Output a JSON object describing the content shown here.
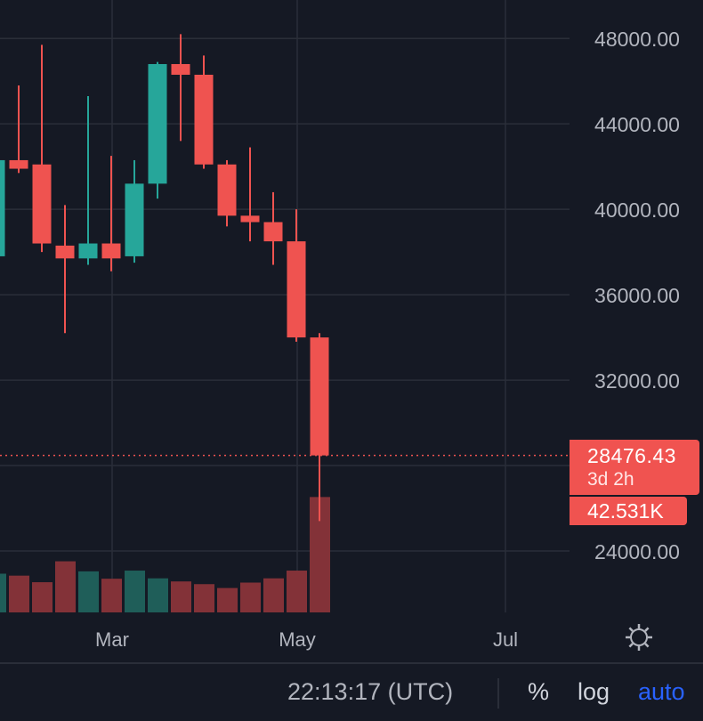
{
  "chart_data": {
    "type": "candlestick",
    "x_ticks": [
      "Mar",
      "May",
      "Jul"
    ],
    "y_ticks": [
      "48000.00",
      "44000.00",
      "40000.00",
      "36000.00",
      "32000.00",
      "24000.00"
    ],
    "y_tick_values": [
      48000,
      44000,
      40000,
      36000,
      32000,
      24000
    ],
    "ylim": [
      20000,
      49800
    ],
    "grid": true,
    "candles": [
      {
        "o": 37800,
        "h": 42500,
        "l": 37700,
        "c": 42300,
        "v": 1.0
      },
      {
        "o": 42300,
        "h": 45800,
        "l": 41700,
        "c": 41900,
        "v": 0.95
      },
      {
        "o": 42100,
        "h": 47700,
        "l": 38000,
        "c": 38400,
        "v": 0.78
      },
      {
        "o": 38300,
        "h": 40200,
        "l": 34200,
        "c": 37700,
        "v": 1.32
      },
      {
        "o": 37700,
        "h": 45300,
        "l": 37400,
        "c": 38400,
        "v": 1.06
      },
      {
        "o": 38400,
        "h": 42500,
        "l": 37100,
        "c": 37700,
        "v": 0.87
      },
      {
        "o": 37800,
        "h": 42300,
        "l": 37500,
        "c": 41200,
        "v": 1.08
      },
      {
        "o": 41200,
        "h": 46900,
        "l": 40500,
        "c": 46800,
        "v": 0.88
      },
      {
        "o": 46800,
        "h": 48200,
        "l": 43200,
        "c": 46300,
        "v": 0.8
      },
      {
        "o": 46300,
        "h": 47200,
        "l": 41900,
        "c": 42100,
        "v": 0.73
      },
      {
        "o": 42100,
        "h": 42300,
        "l": 39200,
        "c": 39700,
        "v": 0.63
      },
      {
        "o": 39700,
        "h": 42900,
        "l": 38500,
        "c": 39400,
        "v": 0.77
      },
      {
        "o": 39400,
        "h": 40800,
        "l": 37400,
        "c": 38500,
        "v": 0.88
      },
      {
        "o": 38500,
        "h": 40000,
        "l": 33800,
        "c": 34000,
        "v": 1.08
      },
      {
        "o": 34000,
        "h": 34200,
        "l": 25400,
        "c": 28476.43,
        "v": 2.98
      }
    ],
    "current_price": "28476.43",
    "countdown": "3d 2h",
    "volume_label": "42.531K",
    "colors": {
      "up": "#26a69a",
      "down": "#ef5350",
      "vol_up": "#1f5e59",
      "vol_down": "#833238",
      "grid": "#2a2e39",
      "bg": "#151924"
    }
  },
  "footer": {
    "time": "22:13:17 (UTC)",
    "percent": "%",
    "log": "log",
    "auto": "auto"
  }
}
